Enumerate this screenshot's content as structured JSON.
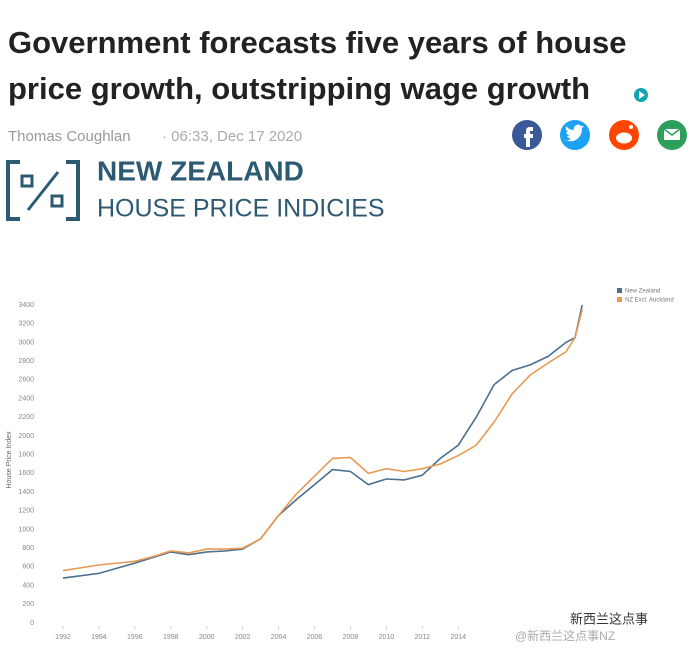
{
  "article": {
    "headline": [
      "Government forecasts five years of house",
      "price growth, outstripping wage growth"
    ],
    "author": "Thomas Coughlan",
    "timestamp": "· 06:33, Dec 17 2020"
  },
  "banner": {
    "title": "NEW ZEALAND",
    "subtitle": "HOUSE PRICE INDICIES"
  },
  "watermark": [
    "新西兰这点事",
    "@新西兰这点事NZ"
  ],
  "chart_data": {
    "type": "line",
    "y_label": "House Price Index",
    "x": [
      1992,
      1994,
      1996,
      1997,
      1998,
      1999,
      2000,
      2001,
      2002,
      2003,
      2004,
      2005,
      2006,
      2007,
      2008,
      2009,
      2010,
      2011,
      2012,
      2013,
      2014,
      2015,
      2016,
      2017,
      2018,
      2019,
      2020,
      2020.5,
      2020.9
    ],
    "series": [
      {
        "name": "New Zealand",
        "color": "#4c6e8f",
        "values": [
          480,
          530,
          640,
          700,
          760,
          730,
          760,
          770,
          790,
          900,
          1150,
          1320,
          1480,
          1640,
          1620,
          1480,
          1540,
          1530,
          1580,
          1760,
          1900,
          2200,
          2550,
          2700,
          2760,
          2850,
          3000,
          3050,
          3400
        ]
      },
      {
        "name": "NZ Excl. Auckland",
        "color": "#e89a52",
        "values": [
          560,
          620,
          660,
          710,
          770,
          750,
          790,
          790,
          800,
          900,
          1150,
          1380,
          1570,
          1760,
          1770,
          1600,
          1650,
          1620,
          1650,
          1700,
          1790,
          1900,
          2150,
          2450,
          2650,
          2780,
          2900,
          3050,
          3350
        ]
      }
    ],
    "xlim": [
      1991,
      2021
    ],
    "xticks": [
      1992,
      1994,
      1996,
      1998,
      2000,
      2002,
      2004,
      2006,
      2008,
      2010,
      2012,
      2014
    ],
    "ylim": [
      0,
      3400
    ],
    "yticks": [
      0,
      200,
      400,
      600,
      800,
      1000,
      1200,
      1400,
      1600,
      1800,
      2000,
      2200,
      2400,
      2600,
      2800,
      3000,
      3200,
      3400
    ],
    "grid": false,
    "legend": "top-right"
  }
}
